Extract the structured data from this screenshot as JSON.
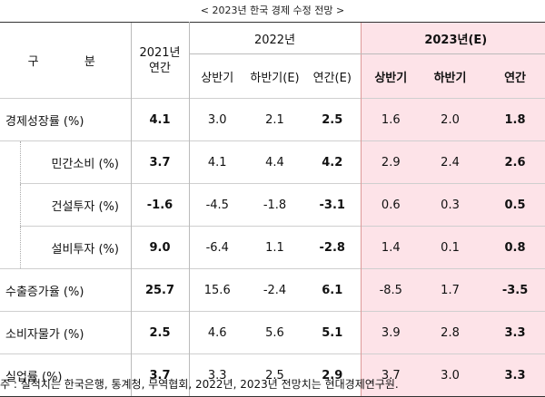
{
  "caption": "< 2023년 한국 경제 수정 전망 >",
  "header": {
    "category_char1": "구",
    "category_char2": "분",
    "col_2021_line1": "2021년",
    "col_2021_line2": "연간",
    "group_2022": "2022년",
    "group_2023": "2023년(E)",
    "sub_2022": [
      "상반기",
      "하반기(E)",
      "연간(E)"
    ],
    "sub_2023": [
      "상반기",
      "하반기",
      "연간"
    ]
  },
  "rows": [
    {
      "label": "경제성장률 (%)",
      "v2021": "4.1",
      "h1_2022": "3.0",
      "h2_2022": "2.1",
      "y_2022": "2.5",
      "h1_2023": "1.6",
      "h2_2023": "2.0",
      "y_2023": "1.8"
    },
    {
      "label": "민간소비 (%)",
      "v2021": "3.7",
      "h1_2022": "4.1",
      "h2_2022": "4.4",
      "y_2022": "4.2",
      "h1_2023": "2.9",
      "h2_2023": "2.4",
      "y_2023": "2.6"
    },
    {
      "label": "건설투자 (%)",
      "v2021": "-1.6",
      "h1_2022": "-4.5",
      "h2_2022": "-1.8",
      "y_2022": "-3.1",
      "h1_2023": "0.6",
      "h2_2023": "0.3",
      "y_2023": "0.5"
    },
    {
      "label": "설비투자 (%)",
      "v2021": "9.0",
      "h1_2022": "-6.4",
      "h2_2022": "1.1",
      "y_2022": "-2.8",
      "h1_2023": "1.4",
      "h2_2023": "0.1",
      "y_2023": "0.8"
    },
    {
      "label": "수출증가율 (%)",
      "v2021": "25.7",
      "h1_2022": "15.6",
      "h2_2022": "-2.4",
      "y_2022": "6.1",
      "h1_2023": "-8.5",
      "h2_2023": "1.7",
      "y_2023": "-3.5"
    },
    {
      "label": "소비자물가 (%)",
      "v2021": "2.5",
      "h1_2022": "4.6",
      "h2_2022": "5.6",
      "y_2022": "5.1",
      "h1_2023": "3.9",
      "h2_2023": "2.8",
      "y_2023": "3.3"
    },
    {
      "label": "실업률 (%)",
      "v2021": "3.7",
      "h1_2022": "3.3",
      "h2_2022": "2.5",
      "y_2022": "2.9",
      "h1_2023": "3.7",
      "h2_2023": "3.0",
      "y_2023": "3.3"
    }
  ],
  "footnote": "주 : 실적치는 한국은행, 통계청, 무역협회, 2022년, 2023년 전망치는 현대경제연구원."
}
